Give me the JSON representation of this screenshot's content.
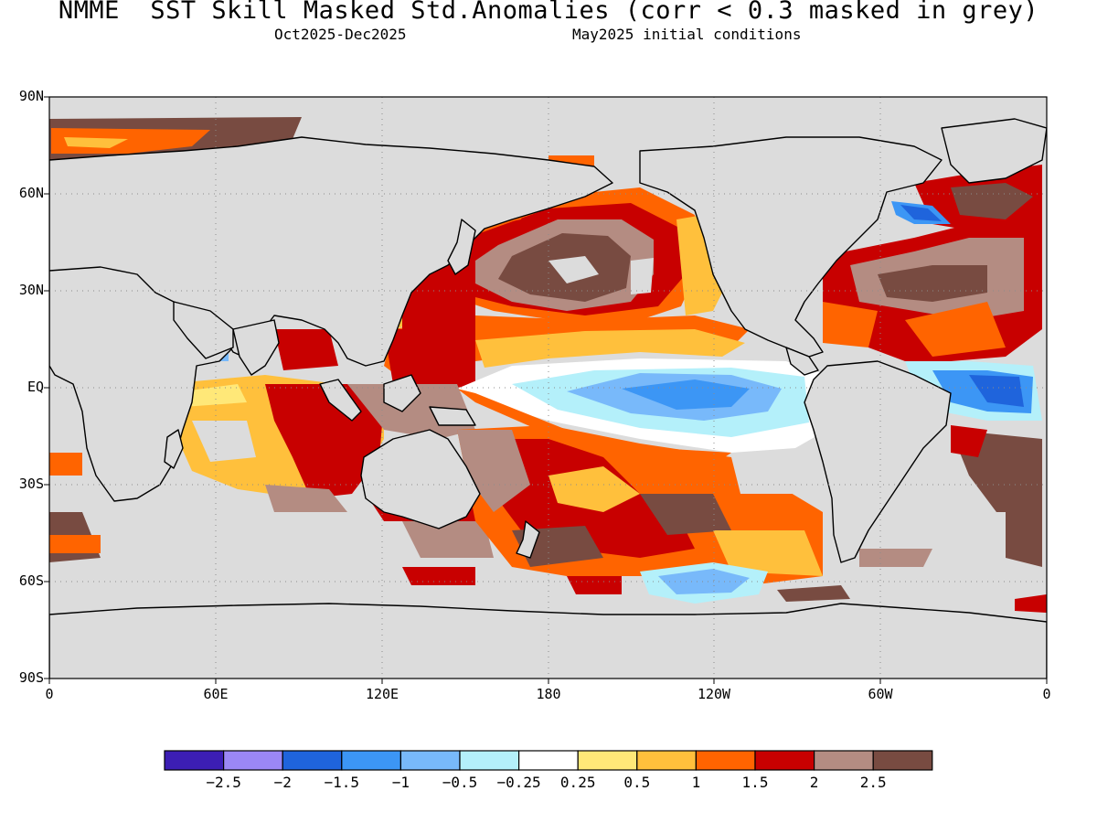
{
  "title": "NMME  SST Skill Masked Std.Anomalies (corr < 0.3 masked in grey)",
  "subtitle_left": "Oct2025-Dec2025",
  "subtitle_right": "May2025 initial conditions",
  "map": {
    "projection": "equirectangular",
    "lon_range": [
      0,
      360
    ],
    "lat_range": [
      -90,
      90
    ],
    "grid": true,
    "mask_color": "#dcdcdc",
    "lat_ticks": [
      "90N",
      "60N",
      "30N",
      "EQ",
      "30S",
      "60S",
      "90S"
    ],
    "lon_ticks": [
      "0",
      "60E",
      "120E",
      "180",
      "120W",
      "60W",
      "0"
    ]
  },
  "colorbar": {
    "colors": [
      "#3c1eb4",
      "#9b87f5",
      "#1f64dc",
      "#3c96f5",
      "#78b9fa",
      "#b4f0fa",
      "#ffffff",
      "#ffe878",
      "#ffc03c",
      "#ff6400",
      "#c80000",
      "#b48c82",
      "#784b41"
    ],
    "labels": [
      "-2.5",
      "-2",
      "-1.5",
      "-1",
      "-0.5",
      "-0.25",
      "0.25",
      "0.5",
      "1",
      "1.5",
      "2",
      "2.5"
    ]
  }
}
